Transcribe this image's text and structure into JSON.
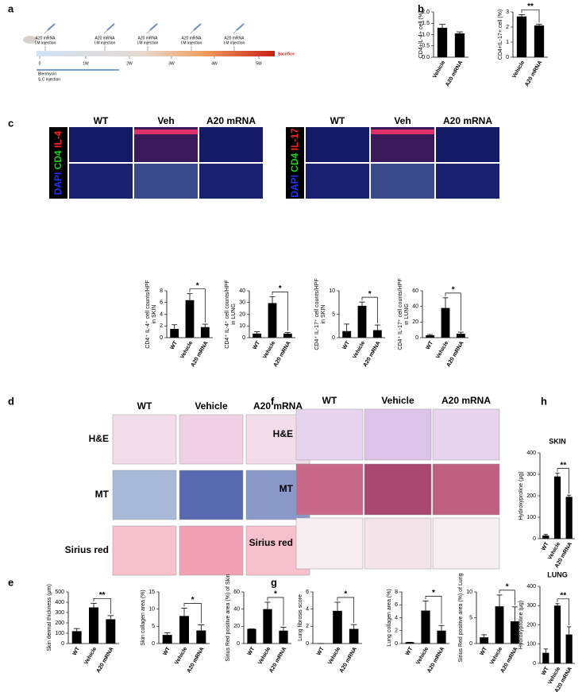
{
  "panel_labels": [
    "a",
    "b",
    "c",
    "d",
    "e",
    "f",
    "g",
    "h"
  ],
  "timeline": {
    "injections": [
      [
        "A20 mRNA",
        "I.M injection"
      ],
      [
        "A20 mRNA",
        "I.M injection"
      ],
      [
        "A20 mRNA",
        "I.M injection"
      ],
      [
        "A20 mRNA",
        "I.M injection"
      ],
      [
        "A20 mRNA",
        "I.M injection"
      ]
    ],
    "weeks": [
      "0",
      "1W",
      "2W",
      "3W",
      "4W",
      "5W"
    ],
    "end": "Sacrifice",
    "bleomycin": [
      "Bleomycin",
      "S.C injection"
    ]
  },
  "c_panels": [
    {
      "headers": [
        "WT",
        "Veh",
        "A20 mRNA"
      ],
      "stains": [
        "DAPI",
        "CD4",
        "IL-4"
      ]
    },
    {
      "headers": [
        "WT",
        "Veh",
        "A20 mRNA"
      ],
      "stains": [
        "DAPI",
        "CD4",
        "IL-17"
      ]
    }
  ],
  "d_panel": {
    "headers": [
      "WT",
      "Vehicle",
      "A20 mRNA"
    ],
    "rows": [
      "H&E",
      "MT",
      "Sirius red"
    ]
  },
  "f_panel": {
    "headers": [
      "WT",
      "Vehicle",
      "A20 mRNA"
    ],
    "rows": [
      "H&E",
      "MT",
      "Sirius red"
    ]
  },
  "chart_data": [
    {
      "type": "bar",
      "ylabel": [
        "CD4+IL-4+ cell (%)"
      ],
      "categories": [
        "Vehicle",
        "A20 mRNA"
      ],
      "values": [
        1.3,
        1.05
      ],
      "errors": [
        0.15,
        0.07
      ],
      "ylim": [
        0,
        2
      ],
      "yticks": [
        {
          "value": 0,
          "label": "0.0"
        },
        0.5,
        {
          "value": 1,
          "label": "1.0"
        },
        1.5,
        {
          "value": 2,
          "label": "2.0"
        }
      ],
      "color": "#000000"
    },
    {
      "type": "bar",
      "ylabel": [
        "CD4+IL-17+ cell (%)"
      ],
      "categories": [
        "Vehicle",
        "A20 mRNA"
      ],
      "values": [
        2.7,
        2.1
      ],
      "errors": [
        0.12,
        0.08
      ],
      "ylim": [
        0,
        3
      ],
      "yticks": [
        0,
        1,
        2,
        3
      ],
      "color": "#000000",
      "significance": "**"
    },
    {
      "type": "bar",
      "ylabel": [
        "CD4⁺ IL-4⁺ cell counts/HPF",
        "in SKIN"
      ],
      "categories": [
        "WT",
        "Vehicle",
        "A20 mRNA"
      ],
      "values": [
        1.5,
        6.4,
        1.8
      ],
      "errors": [
        0.7,
        1.1,
        0.5
      ],
      "ylim": [
        0,
        8
      ],
      "yticks": [
        0,
        2,
        4,
        6,
        8
      ],
      "color": "#000000",
      "significance": "*"
    },
    {
      "type": "bar",
      "ylabel": [
        "CD4⁺ IL-4⁺ cell counts/HPF",
        "in LUNG"
      ],
      "categories": [
        "WT",
        "Vehicle",
        "A20 mRNA"
      ],
      "values": [
        3.5,
        29.5,
        3.5
      ],
      "errors": [
        1.5,
        5.5,
        1
      ],
      "ylim": [
        0,
        40
      ],
      "yticks": [
        0,
        10,
        20,
        30,
        40
      ],
      "color": "#000000",
      "significance": "*"
    },
    {
      "type": "bar",
      "ylabel": [
        "CD4⁺ IL-17⁺ cell counts/HPF",
        "in SKIN"
      ],
      "categories": [
        "WT",
        "Vehicle",
        "A20 mRNA"
      ],
      "values": [
        1.4,
        6.8,
        1.6
      ],
      "errors": [
        1.5,
        0.8,
        1.1
      ],
      "ylim": [
        0,
        10
      ],
      "yticks": [
        0,
        5,
        10
      ],
      "color": "#000000",
      "significance": "*"
    },
    {
      "type": "bar",
      "ylabel": [
        "CD4⁺ IL-17⁺ cell counts/HPF",
        "in LUNG"
      ],
      "categories": [
        "WT",
        "Vehicle",
        "A20 mRNA"
      ],
      "values": [
        3,
        38,
        5
      ],
      "errors": [
        1,
        13,
        2
      ],
      "ylim": [
        0,
        60
      ],
      "yticks": [
        0,
        20,
        40,
        60
      ],
      "color": "#000000",
      "significance": "*"
    },
    {
      "type": "bar",
      "ylabel": [
        "Skin dermal thickness (μm)"
      ],
      "categories": [
        "WT",
        "Vehicle",
        "A20 mRNA"
      ],
      "values": [
        120,
        350,
        235
      ],
      "errors": [
        25,
        40,
        35
      ],
      "ylim": [
        0,
        500
      ],
      "yticks": [
        0,
        100,
        200,
        300,
        400,
        500
      ],
      "color": "#000000",
      "significance": "**"
    },
    {
      "type": "bar",
      "ylabel": [
        "Skin collagen area (%)"
      ],
      "categories": [
        "WT",
        "Vehicle",
        "A20 mRNA"
      ],
      "values": [
        2.5,
        8,
        3.8
      ],
      "errors": [
        0.6,
        2.3,
        1.6
      ],
      "ylim": [
        0,
        15
      ],
      "yticks": [
        0,
        5,
        10,
        15
      ],
      "color": "#000000",
      "significance": "*"
    },
    {
      "type": "bar",
      "ylabel": [
        "Sirius Red positive area (%) of Skin"
      ],
      "categories": [
        "WT",
        "Vehicle",
        "A20 mRNA"
      ],
      "values": [
        17,
        40,
        15
      ],
      "errors": [
        0,
        8,
        4
      ],
      "ylim": [
        0,
        60
      ],
      "yticks": [
        0,
        20,
        40,
        60
      ],
      "color": "#000000",
      "significance": "*"
    },
    {
      "type": "bar",
      "ylabel": [
        "Lung fibrosis score"
      ],
      "categories": [
        "WT",
        "Vehicle",
        "A20 mRNA"
      ],
      "values": [
        0,
        3.8,
        1.7
      ],
      "errors": [
        0,
        1.0,
        0.5
      ],
      "ylim": [
        0,
        6
      ],
      "yticks": [
        0,
        2,
        4,
        6
      ],
      "color": "#000000",
      "significance": "*"
    },
    {
      "type": "bar",
      "ylabel": [
        "Lung collagen area (%)"
      ],
      "categories": [
        "WT",
        "Vehicle",
        "A20 mRNA"
      ],
      "values": [
        0.2,
        5.1,
        2
      ],
      "errors": [
        0,
        1.5,
        0.8
      ],
      "ylim": [
        0,
        8
      ],
      "yticks": [
        0,
        2,
        4,
        6,
        8
      ],
      "color": "#000000",
      "significance": "*"
    },
    {
      "type": "bar",
      "ylabel": [
        "Sirius Red positive area (%) of Lung"
      ],
      "categories": [
        "WT",
        "Vehicle",
        "A20 mRNA"
      ],
      "values": [
        1.2,
        7.2,
        4.3
      ],
      "errors": [
        0.5,
        2.2,
        2.8
      ],
      "ylim": [
        0,
        10
      ],
      "yticks": [
        0,
        5,
        10
      ],
      "color": "#000000",
      "significance": "*"
    },
    {
      "type": "bar",
      "title": "SKIN",
      "ylabel": [
        "Hydroxyproline (μg)"
      ],
      "categories": [
        "WT",
        "Vehicle",
        "A20 mRNA"
      ],
      "values": [
        15,
        290,
        195
      ],
      "errors": [
        5,
        15,
        8
      ],
      "ylim": [
        0,
        400
      ],
      "yticks": [
        0,
        100,
        200,
        300,
        400
      ],
      "color": "#000000",
      "significance": "**"
    },
    {
      "type": "bar",
      "title": "LUNG",
      "ylabel": [
        "Hydroxyproline (μg)"
      ],
      "categories": [
        "WT",
        "Vehicle",
        "A20 mRNA"
      ],
      "values": [
        55,
        300,
        150
      ],
      "errors": [
        20,
        10,
        40
      ],
      "ylim": [
        0,
        400
      ],
      "yticks": [
        0,
        100,
        200,
        300,
        400
      ],
      "color": "#000000",
      "significance": "**"
    }
  ]
}
